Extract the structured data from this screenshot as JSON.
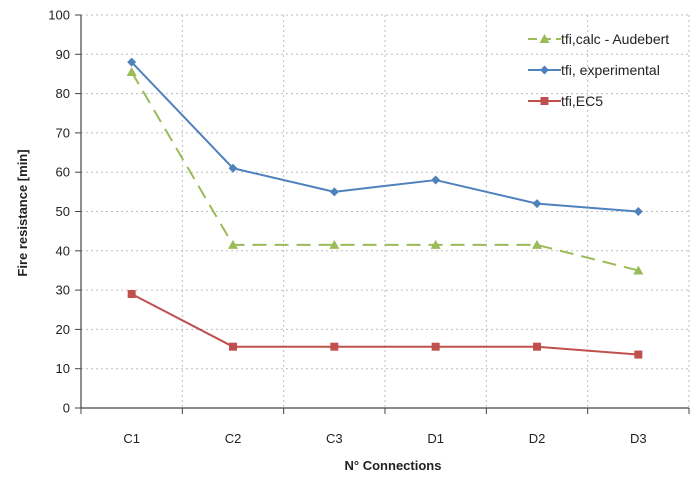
{
  "chart_data": {
    "type": "line",
    "title": "",
    "xlabel": "N° Connections",
    "ylabel": "Fire resistance [min]",
    "categories": [
      "C1",
      "C2",
      "C3",
      "D1",
      "D2",
      "D3"
    ],
    "ylim": [
      0,
      100
    ],
    "yticks": [
      0,
      10,
      20,
      30,
      40,
      50,
      60,
      70,
      80,
      90,
      100
    ],
    "grid": "dotted",
    "legend_position": "top-right",
    "series": [
      {
        "name": "tfi,calc - Audebert",
        "values": [
          85.5,
          41.5,
          41.5,
          41.5,
          41.5,
          35
        ],
        "color": "#9bbb59",
        "style": "dashed",
        "marker": "triangle"
      },
      {
        "name": "tfi, experimental",
        "values": [
          88,
          61,
          55,
          58,
          52,
          50
        ],
        "color": "#4f81bd",
        "style": "solid",
        "marker": "diamond"
      },
      {
        "name": "tfi,EC5",
        "values": [
          29,
          15.6,
          15.6,
          15.6,
          15.6,
          13.6
        ],
        "color": "#c0504d",
        "style": "solid",
        "marker": "square"
      }
    ]
  }
}
